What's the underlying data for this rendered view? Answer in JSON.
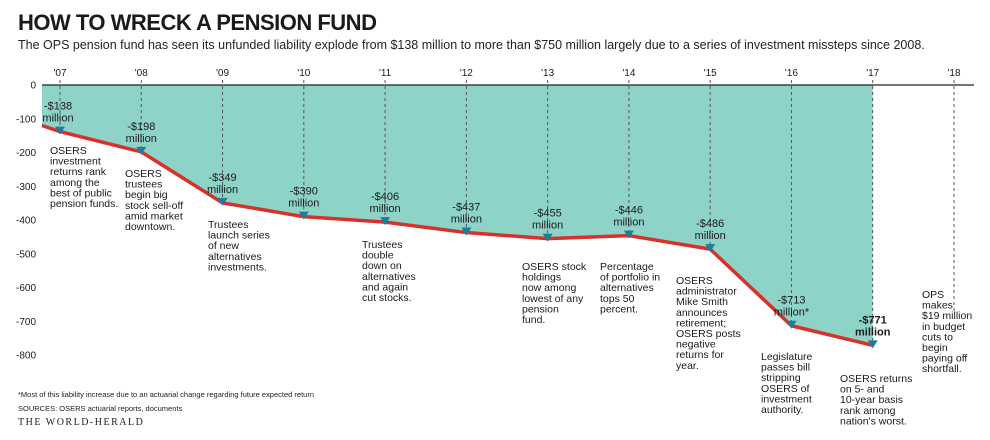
{
  "title": "HOW TO WRECK A PENSION FUND",
  "subtitle": "The OPS pension fund has seen its unfunded liability explode from $138 million to more than $750 million largely due to a series of investment missteps since 2008.",
  "footnote": "*Most of this liability increase due to an actuarial change regarding future expected return",
  "sources": "SOURCES: OSERS actuarial reports, documents",
  "publisher": "THE WORLD-HERALD",
  "colors": {
    "area": "#8ed3c8",
    "line": "#d7312a",
    "marker": "#1a7f9a",
    "guide": "#555555"
  },
  "chart_data": {
    "type": "area",
    "x_tick_labels": [
      "'07",
      "'08",
      "'09",
      "'10",
      "'11",
      "'12",
      "'13",
      "'14",
      "'15",
      "'16",
      "'17",
      "'18"
    ],
    "y_ticks": [
      0,
      -100,
      -200,
      -300,
      -400,
      -500,
      -600,
      -700,
      -800
    ],
    "ylim": [
      -850,
      0
    ],
    "xlim": [
      2007,
      2018
    ],
    "x": [
      2007,
      2008,
      2009,
      2010,
      2011,
      2012,
      2013,
      2014,
      2015,
      2016,
      2017
    ],
    "values": [
      -138,
      -198,
      -349,
      -390,
      -406,
      -437,
      -455,
      -446,
      -486,
      -713,
      -771
    ],
    "area_start_value": -120,
    "value_labels": [
      [
        "-$138",
        "million"
      ],
      [
        "-$198",
        "million"
      ],
      [
        "-$349",
        "million"
      ],
      [
        "-$390",
        "million"
      ],
      [
        "-$406",
        "million"
      ],
      [
        "-$437",
        "million"
      ],
      [
        "-$455",
        "million"
      ],
      [
        "-$446",
        "million"
      ],
      [
        "-$486",
        "million"
      ],
      [
        "-$713",
        "million*"
      ],
      [
        "-$771",
        "million"
      ]
    ],
    "annotations": [
      {
        "x": 2007,
        "lines": [
          "OSERS",
          "investment",
          "returns rank",
          "among the",
          "best of public",
          "pension funds."
        ]
      },
      {
        "x": 2008,
        "lines": [
          "OSERS",
          "trustees",
          "begin big",
          "stock sell-off",
          "amid market",
          "downtown."
        ]
      },
      {
        "x": 2009,
        "lines": [
          "Trustees",
          "launch series",
          "of new",
          "alternatives",
          "investments."
        ]
      },
      {
        "x": 2011,
        "lines": [
          "Trustees",
          "double",
          "down on",
          "alternatives",
          "and again",
          "cut stocks."
        ]
      },
      {
        "x": 2013,
        "lines": [
          "OSERS stock",
          "holdings",
          "now among",
          "lowest of any",
          "pension",
          "fund."
        ]
      },
      {
        "x": 2014,
        "lines": [
          "Percentage",
          "of portfolio in",
          "alternatives",
          "tops 50",
          "percent."
        ]
      },
      {
        "x": 2015,
        "lines": [
          "OSERS",
          "administrator",
          "Mike Smith",
          "announces",
          "retirement;",
          "OSERS posts",
          "negative",
          "returns for",
          "year."
        ]
      },
      {
        "x": 2016,
        "lines": [
          "Legislature",
          "passes bill",
          "stripping",
          "OSERS of",
          "investment",
          "authority."
        ]
      },
      {
        "x": 2017,
        "lines": [
          "OSERS returns",
          "on 5- and",
          "10-year basis",
          "rank among",
          "nation's worst."
        ]
      },
      {
        "x": 2018,
        "lines": [
          "OPS",
          "makes",
          "$19 million",
          "in budget",
          "cuts to",
          "begin",
          "paying off",
          "shortfall."
        ]
      }
    ]
  }
}
